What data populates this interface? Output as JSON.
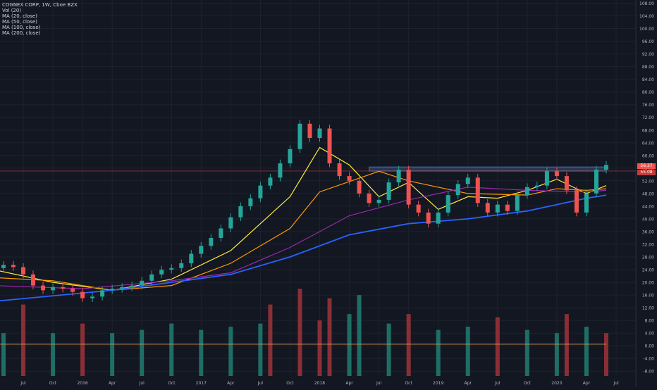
{
  "legend": {
    "symbol_line": "COGNEX CORP, 1W, Cboe BZX",
    "vol_line": "Vol (20)",
    "ma_lines": [
      "MA (20, close)",
      "MA (50, close)",
      "MA (100, close)",
      "MA (200, close)"
    ]
  },
  "price_tags": {
    "upper": "56.37",
    "lower": "55.08"
  },
  "colors": {
    "background": "#131722",
    "grid": "#1e222d",
    "axis_text": "#b2b5be",
    "candle_up": "#26a69a",
    "candle_down": "#ef5350",
    "vol_up": "#1f6e66",
    "vol_down": "#8a2f35",
    "ma20": "#ffeb3b",
    "ma50": "#ff9800",
    "ma100": "#9c27b0",
    "ma200": "#2962ff",
    "vol_ma": "#d4945a",
    "zone": "#4a6fa5",
    "price_line": "#ef5350"
  },
  "chart_data": {
    "type": "candlestick",
    "title": "COGNEX CORP, 1W, Cboe BZX",
    "y_axis_ticks": [
      "108.00",
      "104.00",
      "100.00",
      "96.00",
      "92.00",
      "88.00",
      "84.00",
      "80.00",
      "76.00",
      "72.00",
      "68.00",
      "64.00",
      "60.00",
      "56.00",
      "52.00",
      "48.00",
      "44.00",
      "40.00",
      "36.00",
      "32.00",
      "28.00",
      "24.00",
      "20.00",
      "16.00",
      "12.00",
      "8.00",
      "4.00",
      "0.00",
      "-4.00",
      "-8.00"
    ],
    "y_axis_values": [
      108,
      104,
      100,
      96,
      92,
      88,
      84,
      80,
      76,
      72,
      68,
      64,
      60,
      56,
      52,
      48,
      44,
      40,
      36,
      32,
      28,
      24,
      20,
      16,
      12,
      8,
      4,
      0,
      -4,
      -8
    ],
    "x_axis_ticks": [
      "Jul",
      "Oct",
      "2016",
      "Apr",
      "Jul",
      "Oct",
      "2017",
      "Apr",
      "Jul",
      "Oct",
      "2018",
      "Apr",
      "Jul",
      "Oct",
      "2019",
      "Apr",
      "Jul",
      "Oct",
      "2020",
      "Apr",
      "Jul"
    ],
    "x_axis_dates": [
      "2015-07",
      "2015-10",
      "2016-01",
      "2016-04",
      "2016-07",
      "2016-10",
      "2017-01",
      "2017-04",
      "2017-07",
      "2017-10",
      "2018-01",
      "2018-04",
      "2018-07",
      "2018-10",
      "2019-01",
      "2019-04",
      "2019-07",
      "2019-10",
      "2020-01",
      "2020-04",
      "2020-07"
    ],
    "ylim": [
      -9.5,
      109
    ],
    "close_series": [
      {
        "date": "2015-04",
        "close": 24.5
      },
      {
        "date": "2015-05",
        "close": 25.5
      },
      {
        "date": "2015-06",
        "close": 24.8
      },
      {
        "date": "2015-07",
        "close": 22.5
      },
      {
        "date": "2015-08",
        "close": 19.0
      },
      {
        "date": "2015-09",
        "close": 17.5
      },
      {
        "date": "2015-10",
        "close": 18.5
      },
      {
        "date": "2015-11",
        "close": 18.0
      },
      {
        "date": "2015-12",
        "close": 17.0
      },
      {
        "date": "2016-01",
        "close": 15.0
      },
      {
        "date": "2016-02",
        "close": 15.5
      },
      {
        "date": "2016-03",
        "close": 17.5
      },
      {
        "date": "2016-04",
        "close": 18.0
      },
      {
        "date": "2016-05",
        "close": 18.5
      },
      {
        "date": "2016-06",
        "close": 19.0
      },
      {
        "date": "2016-07",
        "close": 20.5
      },
      {
        "date": "2016-08",
        "close": 22.5
      },
      {
        "date": "2016-09",
        "close": 24.0
      },
      {
        "date": "2016-10",
        "close": 24.5
      },
      {
        "date": "2016-11",
        "close": 26.0
      },
      {
        "date": "2016-12",
        "close": 29.0
      },
      {
        "date": "2017-01",
        "close": 31.5
      },
      {
        "date": "2017-02",
        "close": 34.0
      },
      {
        "date": "2017-03",
        "close": 37.0
      },
      {
        "date": "2017-04",
        "close": 40.5
      },
      {
        "date": "2017-05",
        "close": 44.0
      },
      {
        "date": "2017-06",
        "close": 46.5
      },
      {
        "date": "2017-07",
        "close": 50.5
      },
      {
        "date": "2017-08",
        "close": 53.0
      },
      {
        "date": "2017-09",
        "close": 57.5
      },
      {
        "date": "2017-10",
        "close": 62.0
      },
      {
        "date": "2017-11",
        "close": 70.0
      },
      {
        "date": "2017-12",
        "close": 65.5
      },
      {
        "date": "2018-01",
        "close": 68.5
      },
      {
        "date": "2018-02",
        "close": 57.5
      },
      {
        "date": "2018-03",
        "close": 53.5
      },
      {
        "date": "2018-04",
        "close": 52.0
      },
      {
        "date": "2018-05",
        "close": 48.0
      },
      {
        "date": "2018-06",
        "close": 45.0
      },
      {
        "date": "2018-07",
        "close": 46.0
      },
      {
        "date": "2018-08",
        "close": 51.5
      },
      {
        "date": "2018-09",
        "close": 55.5
      },
      {
        "date": "2018-10",
        "close": 44.5
      },
      {
        "date": "2018-11",
        "close": 42.0
      },
      {
        "date": "2018-12",
        "close": 38.5
      },
      {
        "date": "2019-01",
        "close": 42.0
      },
      {
        "date": "2019-02",
        "close": 47.5
      },
      {
        "date": "2019-03",
        "close": 51.0
      },
      {
        "date": "2019-04",
        "close": 53.0
      },
      {
        "date": "2019-05",
        "close": 45.0
      },
      {
        "date": "2019-06",
        "close": 42.0
      },
      {
        "date": "2019-07",
        "close": 44.5
      },
      {
        "date": "2019-08",
        "close": 42.5
      },
      {
        "date": "2019-09",
        "close": 47.5
      },
      {
        "date": "2019-10",
        "close": 50.0
      },
      {
        "date": "2019-11",
        "close": 50.5
      },
      {
        "date": "2019-12",
        "close": 55.0
      },
      {
        "date": "2020-01",
        "close": 53.5
      },
      {
        "date": "2020-02",
        "close": 49.0
      },
      {
        "date": "2020-03",
        "close": 42.0
      },
      {
        "date": "2020-04",
        "close": 48.0
      },
      {
        "date": "2020-05",
        "close": 55.5
      },
      {
        "date": "2020-06",
        "close": 57.0
      }
    ],
    "moving_averages": [
      {
        "name": "MA (20, close)",
        "points": [
          [
            "2015-04",
            24.0
          ],
          [
            "2015-10",
            20.0
          ],
          [
            "2016-04",
            17.5
          ],
          [
            "2016-10",
            21.0
          ],
          [
            "2017-04",
            30.0
          ],
          [
            "2017-10",
            47.0
          ],
          [
            "2018-01",
            62.5
          ],
          [
            "2018-04",
            57.0
          ],
          [
            "2018-07",
            47.0
          ],
          [
            "2018-10",
            51.5
          ],
          [
            "2019-01",
            43.0
          ],
          [
            "2019-04",
            47.0
          ],
          [
            "2019-07",
            46.5
          ],
          [
            "2019-10",
            49.0
          ],
          [
            "2020-01",
            52.5
          ],
          [
            "2020-04",
            48.0
          ],
          [
            "2020-06",
            50.5
          ]
        ]
      },
      {
        "name": "MA (50, close)",
        "points": [
          [
            "2015-04",
            21.5
          ],
          [
            "2015-10",
            20.5
          ],
          [
            "2016-04",
            17.5
          ],
          [
            "2016-10",
            19.0
          ],
          [
            "2017-04",
            26.0
          ],
          [
            "2017-10",
            37.0
          ],
          [
            "2018-01",
            48.5
          ],
          [
            "2018-07",
            55.0
          ],
          [
            "2018-10",
            52.0
          ],
          [
            "2019-04",
            48.0
          ],
          [
            "2019-10",
            47.5
          ],
          [
            "2020-01",
            49.5
          ],
          [
            "2020-04",
            49.0
          ],
          [
            "2020-06",
            49.5
          ]
        ]
      },
      {
        "name": "MA (100, close)",
        "points": [
          [
            "2015-04",
            19.0
          ],
          [
            "2016-01",
            18.0
          ],
          [
            "2016-10",
            20.5
          ],
          [
            "2017-04",
            23.0
          ],
          [
            "2017-10",
            31.0
          ],
          [
            "2018-04",
            41.0
          ],
          [
            "2018-10",
            46.0
          ],
          [
            "2019-04",
            50.0
          ],
          [
            "2019-10",
            49.0
          ],
          [
            "2020-04",
            48.5
          ],
          [
            "2020-06",
            49.0
          ]
        ]
      },
      {
        "name": "MA (200, close)",
        "points": [
          [
            "2015-04",
            14.0
          ],
          [
            "2016-04",
            17.5
          ],
          [
            "2016-10",
            20.0
          ],
          [
            "2017-04",
            22.5
          ],
          [
            "2017-10",
            28.0
          ],
          [
            "2018-04",
            35.0
          ],
          [
            "2018-10",
            38.5
          ],
          [
            "2019-04",
            40.0
          ],
          [
            "2019-10",
            42.5
          ],
          [
            "2020-04",
            46.5
          ],
          [
            "2020-06",
            47.5
          ]
        ]
      }
    ],
    "resistance_zone": {
      "from": "2018-06",
      "to": "2020-06",
      "low": 55.08,
      "high": 56.37
    },
    "volume_series": [
      {
        "date": "2015-05",
        "value": 4,
        "up": true
      },
      {
        "date": "2015-07",
        "value": 13,
        "up": false
      },
      {
        "date": "2015-10",
        "value": 4,
        "up": true
      },
      {
        "date": "2016-01",
        "value": 7,
        "up": false
      },
      {
        "date": "2016-04",
        "value": 4,
        "up": true
      },
      {
        "date": "2016-07",
        "value": 5,
        "up": true
      },
      {
        "date": "2016-10",
        "value": 7,
        "up": true
      },
      {
        "date": "2017-01",
        "value": 5,
        "up": true
      },
      {
        "date": "2017-04",
        "value": 6,
        "up": true
      },
      {
        "date": "2017-07",
        "value": 7,
        "up": true
      },
      {
        "date": "2017-08",
        "value": 13,
        "up": false
      },
      {
        "date": "2017-11",
        "value": 18,
        "up": false
      },
      {
        "date": "2018-01",
        "value": 8,
        "up": false
      },
      {
        "date": "2018-02",
        "value": 15,
        "up": false
      },
      {
        "date": "2018-04",
        "value": 10,
        "up": true
      },
      {
        "date": "2018-05",
        "value": 16,
        "up": true
      },
      {
        "date": "2018-08",
        "value": 7,
        "up": true
      },
      {
        "date": "2018-10",
        "value": 10,
        "up": false
      },
      {
        "date": "2019-01",
        "value": 5,
        "up": true
      },
      {
        "date": "2019-04",
        "value": 6,
        "up": true
      },
      {
        "date": "2019-07",
        "value": 9,
        "up": false
      },
      {
        "date": "2019-10",
        "value": 5,
        "up": true
      },
      {
        "date": "2020-01",
        "value": 4,
        "up": true
      },
      {
        "date": "2020-02",
        "value": 10,
        "up": false
      },
      {
        "date": "2020-04",
        "value": 6,
        "up": true
      },
      {
        "date": "2020-06",
        "value": 4,
        "up": false
      }
    ],
    "vol_ma_level": 0.5
  }
}
